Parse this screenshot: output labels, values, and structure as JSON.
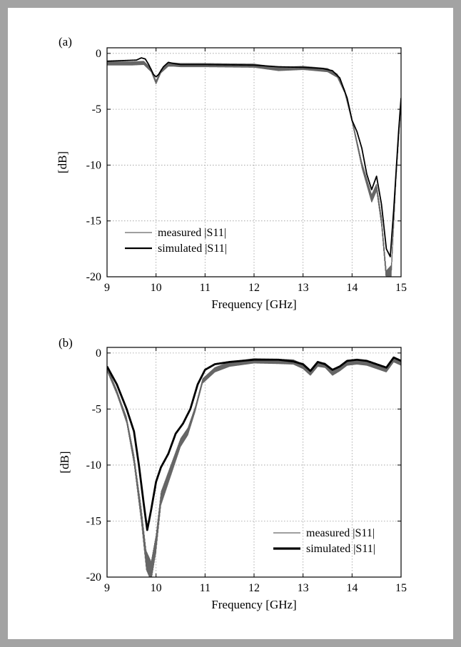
{
  "chart_data": [
    {
      "type": "line",
      "panel_label": "(a)",
      "xlabel": "Frequency [GHz]",
      "ylabel": "[dB]",
      "xlim": [
        9,
        15
      ],
      "ylim": [
        -20,
        0.5
      ],
      "x_ticks": [
        9,
        10,
        11,
        12,
        13,
        14,
        15
      ],
      "y_ticks": [
        0,
        -5,
        -10,
        -15,
        -20
      ],
      "x_tick_labels": [
        "9",
        "10",
        "11",
        "12",
        "13",
        "14",
        "15"
      ],
      "y_tick_labels": [
        "0",
        "-5",
        "-10",
        "-15",
        "-20"
      ],
      "grid": true,
      "legend_position": "bottom-left",
      "series": [
        {
          "name": "measured |S11|",
          "color": "#666666",
          "noise": 0.15,
          "noise_from": 13.7,
          "noise_scale": 1.2,
          "x": [
            9.0,
            9.5,
            9.75,
            9.9,
            10.0,
            10.1,
            10.25,
            10.35,
            10.5,
            11.0,
            12.0,
            12.5,
            13.0,
            13.5,
            13.7,
            13.85,
            14.0,
            14.1,
            14.2,
            14.3,
            14.4,
            14.5,
            14.6,
            14.7,
            14.8,
            14.9,
            15.0
          ],
          "y": [
            -0.9,
            -0.9,
            -0.85,
            -1.5,
            -2.6,
            -1.6,
            -1.0,
            -1.0,
            -1.05,
            -1.05,
            -1.1,
            -1.4,
            -1.3,
            -1.5,
            -2.0,
            -3.4,
            -6.0,
            -8.0,
            -10.0,
            -11.5,
            -13.0,
            -12.0,
            -15.0,
            -20.0,
            -19.5,
            -11.0,
            -4.5
          ]
        },
        {
          "name": "simulated |S11|",
          "color": "#000000",
          "x": [
            9.0,
            9.3,
            9.6,
            9.7,
            9.78,
            9.85,
            9.95,
            10.0,
            10.05,
            10.15,
            10.25,
            10.35,
            10.5,
            11.0,
            12.0,
            12.5,
            13.0,
            13.4,
            13.6,
            13.75,
            13.9,
            14.0,
            14.1,
            14.2,
            14.3,
            14.4,
            14.5,
            14.6,
            14.7,
            14.78,
            14.85,
            14.95,
            15.0
          ],
          "y": [
            -0.7,
            -0.65,
            -0.6,
            -0.4,
            -0.5,
            -1.0,
            -1.9,
            -2.1,
            -1.9,
            -1.2,
            -0.8,
            -0.9,
            -1.0,
            -1.0,
            -1.05,
            -1.2,
            -1.25,
            -1.35,
            -1.55,
            -2.2,
            -4.0,
            -6.0,
            -7.0,
            -8.5,
            -10.8,
            -12.2,
            -11.0,
            -13.5,
            -17.5,
            -18.2,
            -14.0,
            -7.0,
            -4.0
          ]
        }
      ]
    },
    {
      "type": "line",
      "panel_label": "(b)",
      "xlabel": "Frequency [GHz]",
      "ylabel": "[dB]",
      "xlim": [
        9,
        15
      ],
      "ylim": [
        -20,
        0.5
      ],
      "x_ticks": [
        9,
        10,
        11,
        12,
        13,
        14,
        15
      ],
      "y_ticks": [
        0,
        -5,
        -10,
        -15,
        -20
      ],
      "x_tick_labels": [
        "9",
        "10",
        "11",
        "12",
        "13",
        "14",
        "15"
      ],
      "y_tick_labels": [
        "0",
        "-5",
        "-10",
        "-15",
        "-20"
      ],
      "grid": true,
      "legend_position": "bottom-right",
      "series": [
        {
          "name": "measured |S11|",
          "color": "#666666",
          "noise": 0.2,
          "noise_from": 9.2,
          "noise_to": 10.9,
          "noise_scale": 1.5,
          "x": [
            9.0,
            9.2,
            9.4,
            9.55,
            9.7,
            9.8,
            9.9,
            10.0,
            10.1,
            10.3,
            10.5,
            10.65,
            10.8,
            10.95,
            11.2,
            11.5,
            12.0,
            12.5,
            12.8,
            13.0,
            13.15,
            13.3,
            13.45,
            13.6,
            13.75,
            13.9,
            14.1,
            14.3,
            14.5,
            14.7,
            14.85,
            15.0
          ],
          "y": [
            -1.4,
            -3.5,
            -6.0,
            -9.5,
            -14.5,
            -18.5,
            -19.5,
            -17.0,
            -13.0,
            -10.5,
            -8.0,
            -7.0,
            -5.0,
            -2.5,
            -1.5,
            -1.0,
            -0.7,
            -0.75,
            -0.8,
            -1.2,
            -1.8,
            -1.0,
            -1.1,
            -1.8,
            -1.4,
            -0.9,
            -0.8,
            -0.9,
            -1.2,
            -1.5,
            -0.6,
            -0.9
          ]
        },
        {
          "name": "simulated |S11|",
          "color": "#000000",
          "x": [
            9.0,
            9.2,
            9.4,
            9.55,
            9.65,
            9.75,
            9.82,
            9.9,
            10.0,
            10.1,
            10.25,
            10.4,
            10.55,
            10.7,
            10.85,
            11.0,
            11.2,
            11.5,
            12.0,
            12.5,
            12.8,
            13.0,
            13.15,
            13.3,
            13.45,
            13.6,
            13.75,
            13.9,
            14.1,
            14.3,
            14.5,
            14.7,
            14.85,
            15.0
          ],
          "y": [
            -1.2,
            -2.8,
            -5.0,
            -7.0,
            -10.0,
            -13.5,
            -15.8,
            -14.0,
            -11.5,
            -10.2,
            -9.0,
            -7.2,
            -6.3,
            -5.0,
            -2.8,
            -1.5,
            -1.0,
            -0.8,
            -0.6,
            -0.6,
            -0.75,
            -1.0,
            -1.6,
            -0.8,
            -1.0,
            -1.5,
            -1.2,
            -0.7,
            -0.6,
            -0.7,
            -1.0,
            -1.3,
            -0.4,
            -0.7
          ]
        }
      ]
    }
  ]
}
